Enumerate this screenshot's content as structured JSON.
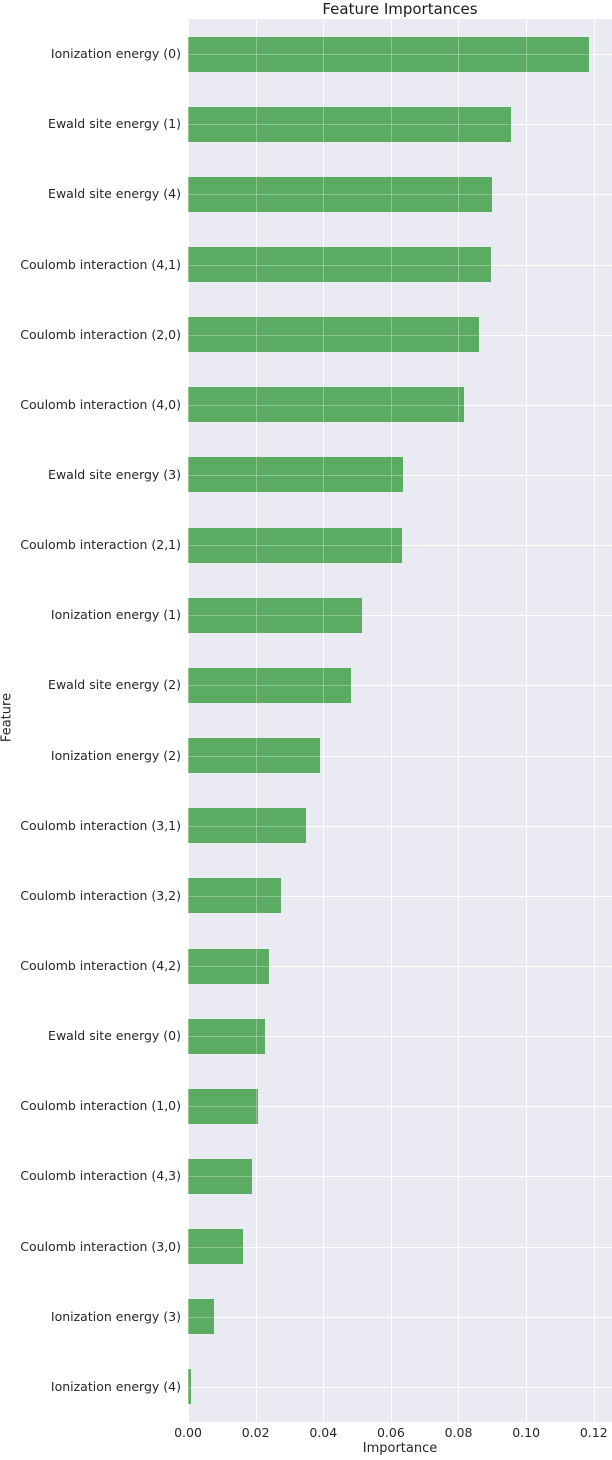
{
  "chart_data": {
    "type": "bar",
    "orientation": "horizontal",
    "title": "Feature Importances",
    "xlabel": "Importance",
    "ylabel": "Feature",
    "categories": [
      "Ionization energy (0)",
      "Ewald site energy (1)",
      "Ewald site energy (4)",
      "Coulomb interaction (4,1)",
      "Coulomb interaction (2,0)",
      "Coulomb interaction (4,0)",
      "Ewald site energy (3)",
      "Coulomb interaction (2,1)",
      "Ionization energy (1)",
      "Ewald site energy (2)",
      "Ionization energy (2)",
      "Coulomb interaction (3,1)",
      "Coulomb interaction (3,2)",
      "Coulomb interaction (4,2)",
      "Ewald site energy (0)",
      "Coulomb interaction (1,0)",
      "Coulomb interaction (4,3)",
      "Coulomb interaction (3,0)",
      "Ionization energy (3)",
      "Ionization energy (4)"
    ],
    "values": [
      0.1186,
      0.0954,
      0.09,
      0.0897,
      0.0861,
      0.0817,
      0.0635,
      0.0632,
      0.0515,
      0.0482,
      0.039,
      0.035,
      0.0275,
      0.0241,
      0.0229,
      0.0206,
      0.0188,
      0.0164,
      0.0076,
      0.0008
    ],
    "xlim": [
      0,
      0.1254
    ],
    "xticks": [
      0,
      0.02,
      0.04,
      0.06,
      0.08,
      0.1,
      0.12
    ],
    "xtick_labels": [
      "0.00",
      "0.02",
      "0.04",
      "0.06",
      "0.08",
      "0.10",
      "0.12"
    ],
    "grid": true,
    "legend": false,
    "colors": {
      "bar": "#5bac62",
      "plot_background": "#eaeaf2",
      "figure_background": "#ffffff",
      "gridline": "#ffffff",
      "text": "#262626"
    }
  }
}
